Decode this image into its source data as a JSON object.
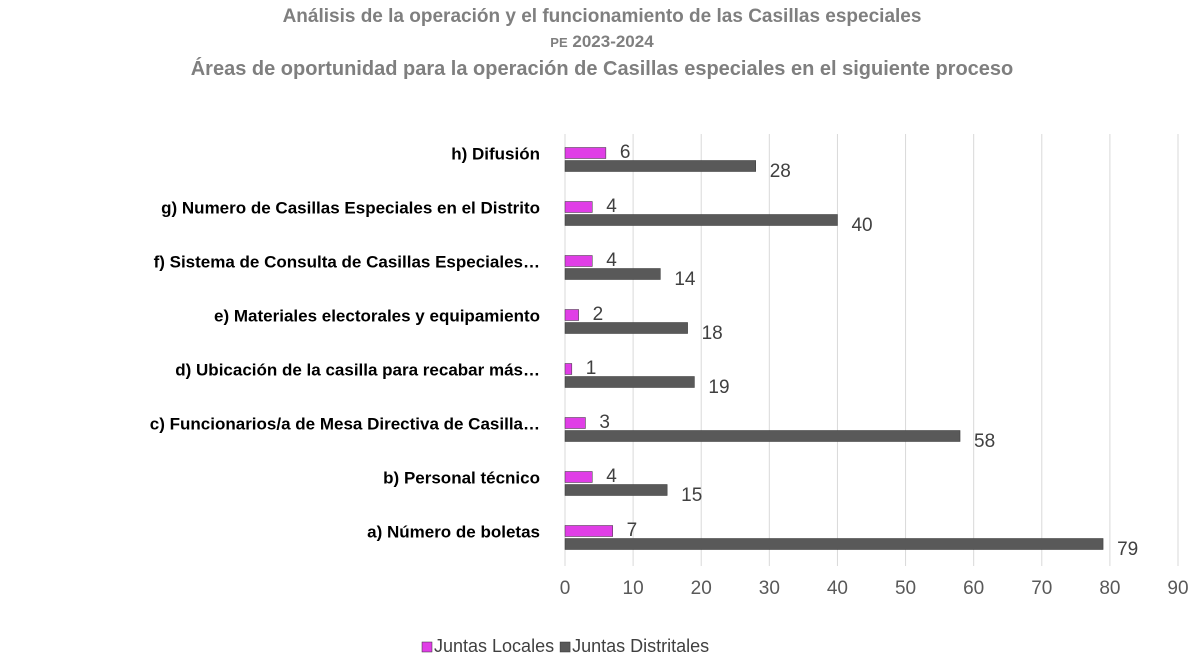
{
  "chart_data": {
    "type": "bar",
    "orientation": "horizontal",
    "title": "Análisis de la operación y el funcionamiento de las Casillas especiales",
    "process": "PE",
    "period": "2023-2024",
    "subtitle": "Áreas de oportunidad para la operación de Casillas especiales en el siguiente proceso",
    "categories": [
      "a) Número de boletas",
      "b) Personal técnico",
      "c) Funcionarios/a de Mesa Directiva de Casilla…",
      "d) Ubicación de la casilla para recabar más…",
      "e) Materiales electorales y equipamiento",
      "f) Sistema de Consulta de Casillas Especiales…",
      "g) Numero de Casillas Especiales en el Distrito",
      "h) Difusión"
    ],
    "series": [
      {
        "name": "Juntas Locales",
        "color": "#e03ee6",
        "values": [
          7,
          4,
          3,
          1,
          2,
          4,
          4,
          6
        ]
      },
      {
        "name": "Juntas Distritales",
        "color": "#595959",
        "values": [
          79,
          15,
          58,
          19,
          18,
          14,
          40,
          28
        ]
      }
    ],
    "xlim": [
      0,
      90
    ],
    "xticks": [
      0,
      10,
      20,
      30,
      40,
      50,
      60,
      70,
      80,
      90
    ],
    "grid": true,
    "legend": "bottom"
  }
}
